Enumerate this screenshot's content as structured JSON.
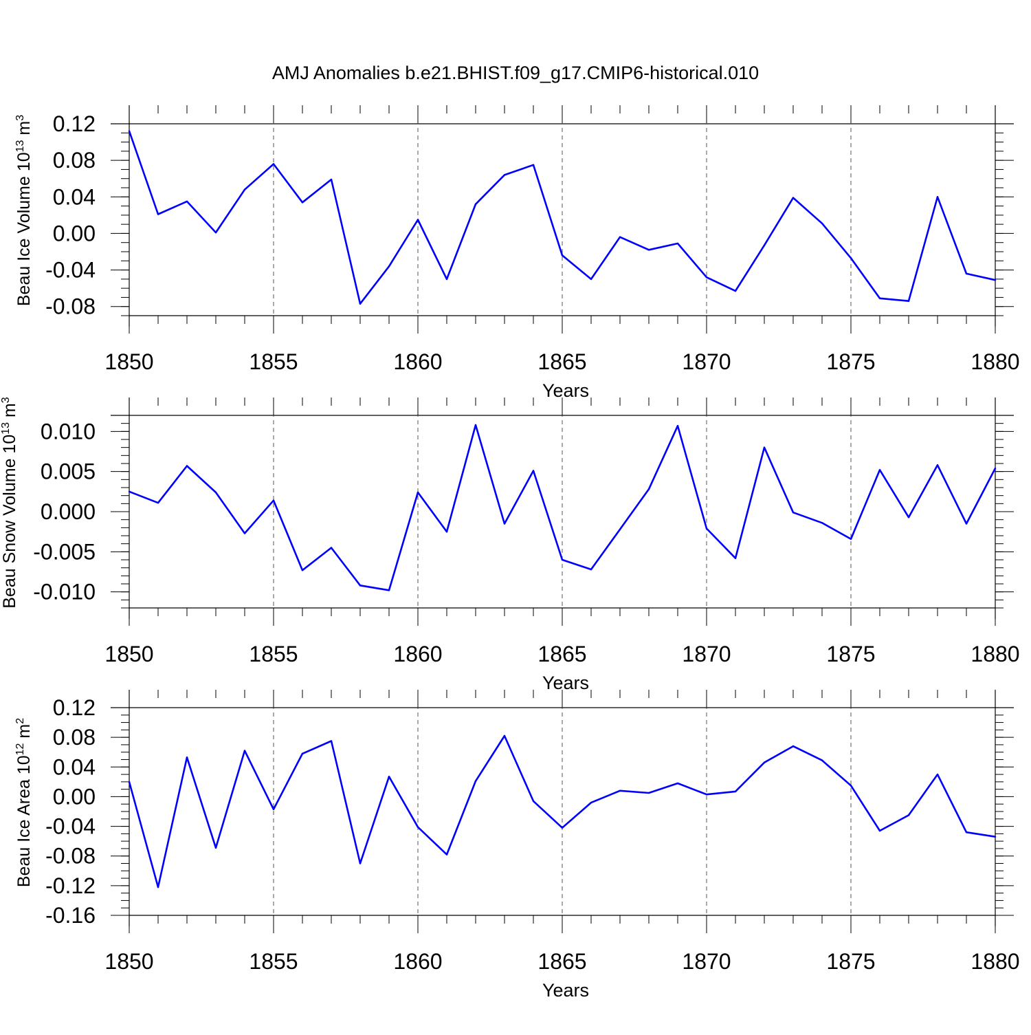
{
  "figure": {
    "title": "AMJ Anomalies b.e21.BHIST.f09_g17.CMIP6-historical.010"
  },
  "chart_data": [
    {
      "type": "line",
      "xlabel": "Years",
      "ylabel": "Beau Ice Volume 10",
      "ylabel_sup": "13",
      "ylabel_unit": " m",
      "ylabel_unit_sup": "3",
      "xlim": [
        1850,
        1880
      ],
      "ylim": [
        -0.09,
        0.12
      ],
      "xticks": [
        "1850",
        "1855",
        "1860",
        "1865",
        "1870",
        "1875",
        "1880"
      ],
      "yticks": [
        "0.12",
        "0.08",
        "0.04",
        "0.00",
        "-0.04",
        "-0.08"
      ],
      "x": [
        1850,
        1851,
        1852,
        1853,
        1854,
        1855,
        1856,
        1857,
        1858,
        1859,
        1860,
        1861,
        1862,
        1863,
        1864,
        1865,
        1866,
        1867,
        1868,
        1869,
        1870,
        1871,
        1872,
        1873,
        1874,
        1875,
        1876,
        1877,
        1878,
        1879,
        1880
      ],
      "series": [
        {
          "color": "#0000ff",
          "values": [
            0.112,
            0.021,
            0.035,
            0.001,
            0.048,
            0.076,
            0.034,
            0.059,
            -0.077,
            -0.036,
            0.015,
            -0.05,
            0.032,
            0.064,
            0.075,
            -0.024,
            -0.05,
            -0.004,
            -0.018,
            -0.011,
            -0.048,
            -0.063,
            -0.013,
            0.039,
            0.011,
            -0.027,
            -0.071,
            -0.074,
            0.04,
            -0.044,
            -0.051
          ]
        }
      ],
      "grid": "vertical dashed at major ticks"
    },
    {
      "type": "line",
      "xlabel": "Years",
      "ylabel": "Beau Snow Volume 10",
      "ylabel_sup": "13",
      "ylabel_unit": " m",
      "ylabel_unit_sup": "3",
      "xlim": [
        1850,
        1880
      ],
      "ylim": [
        -0.012,
        0.012
      ],
      "xticks": [
        "1850",
        "1855",
        "1860",
        "1865",
        "1870",
        "1875",
        "1880"
      ],
      "yticks": [
        "0.010",
        "0.005",
        "0.000",
        "-0.005",
        "-0.010"
      ],
      "x": [
        1850,
        1851,
        1852,
        1853,
        1854,
        1855,
        1856,
        1857,
        1858,
        1859,
        1860,
        1861,
        1862,
        1863,
        1864,
        1865,
        1866,
        1867,
        1868,
        1869,
        1870,
        1871,
        1872,
        1873,
        1874,
        1875,
        1876,
        1877,
        1878,
        1879,
        1880
      ],
      "series": [
        {
          "color": "#0000ff",
          "values": [
            0.0025,
            0.0011,
            0.0057,
            0.0024,
            -0.0027,
            0.0014,
            -0.0073,
            -0.0045,
            -0.0092,
            -0.0098,
            0.0024,
            -0.0025,
            0.0108,
            -0.0015,
            0.0051,
            -0.006,
            -0.0072,
            -0.0022,
            0.0028,
            0.0107,
            -0.0021,
            -0.0058,
            0.008,
            -0.0001,
            -0.0014,
            -0.0034,
            0.0052,
            -0.0007,
            0.0058,
            -0.0015,
            0.0054
          ]
        }
      ],
      "grid": "vertical dashed at major ticks"
    },
    {
      "type": "line",
      "xlabel": "Years",
      "ylabel": "Beau Ice Area 10",
      "ylabel_sup": "12",
      "ylabel_unit": " m",
      "ylabel_unit_sup": "2",
      "xlim": [
        1850,
        1880
      ],
      "ylim": [
        -0.16,
        0.12
      ],
      "xticks": [
        "1850",
        "1855",
        "1860",
        "1865",
        "1870",
        "1875",
        "1880"
      ],
      "yticks": [
        "0.12",
        "0.08",
        "0.04",
        "0.00",
        "-0.04",
        "-0.08",
        "-0.12",
        "-0.16"
      ],
      "x": [
        1850,
        1851,
        1852,
        1853,
        1854,
        1855,
        1856,
        1857,
        1858,
        1859,
        1860,
        1861,
        1862,
        1863,
        1864,
        1865,
        1866,
        1867,
        1868,
        1869,
        1870,
        1871,
        1872,
        1873,
        1874,
        1875,
        1876,
        1877,
        1878,
        1879,
        1880
      ],
      "series": [
        {
          "color": "#0000ff",
          "values": [
            0.02,
            -0.122,
            0.053,
            -0.069,
            0.062,
            -0.017,
            0.058,
            0.075,
            -0.09,
            0.027,
            -0.041,
            -0.078,
            0.021,
            0.082,
            -0.006,
            -0.042,
            -0.008,
            0.008,
            0.005,
            0.018,
            0.003,
            0.007,
            0.046,
            0.068,
            0.049,
            0.015,
            -0.046,
            -0.025,
            0.03,
            -0.048,
            -0.054
          ]
        }
      ],
      "grid": "vertical dashed at major ticks"
    }
  ]
}
